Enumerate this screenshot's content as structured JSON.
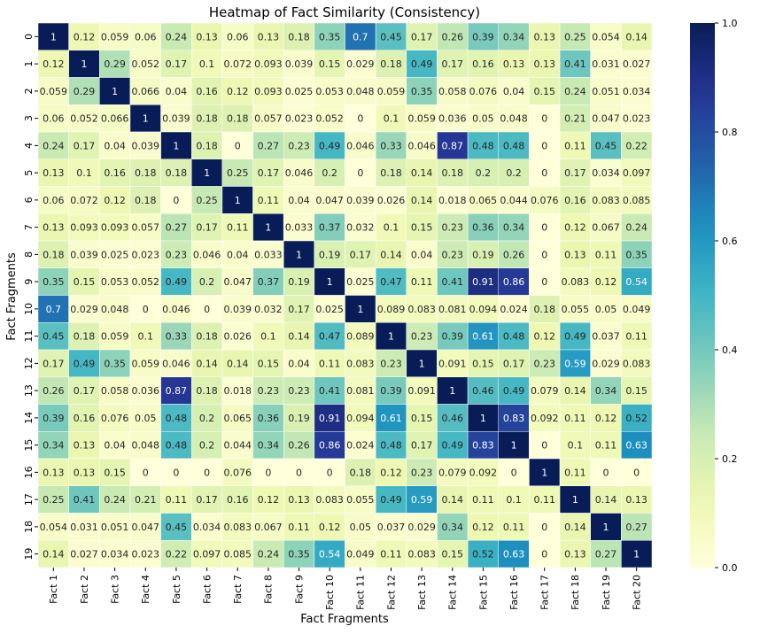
{
  "chart_data": {
    "type": "heatmap",
    "title": "Heatmap of Fact Similarity (Consistency)",
    "xlabel": "Fact Fragments",
    "ylabel": "Fact Fragments",
    "x_categories": [
      "Fact 1",
      "Fact 2",
      "Fact 3",
      "Fact 4",
      "Fact 5",
      "Fact 6",
      "Fact 7",
      "Fact 8",
      "Fact 9",
      "Fact 10",
      "Fact 11",
      "Fact 12",
      "Fact 13",
      "Fact 14",
      "Fact 15",
      "Fact 16",
      "Fact 17",
      "Fact 18",
      "Fact 19",
      "Fact 20"
    ],
    "y_categories": [
      "0",
      "1",
      "2",
      "3",
      "4",
      "5",
      "6",
      "7",
      "8",
      "9",
      "10",
      "11",
      "12",
      "13",
      "14",
      "15",
      "16",
      "17",
      "18",
      "19"
    ],
    "colormap": "YlGnBu",
    "vmin": 0,
    "vmax": 1,
    "colorbar_ticks": [
      "0.0",
      "0.2",
      "0.4",
      "0.6",
      "0.8",
      "1.0"
    ],
    "values": [
      [
        1,
        0.12,
        0.059,
        0.06,
        0.24,
        0.13,
        0.06,
        0.13,
        0.18,
        0.35,
        0.7,
        0.45,
        0.17,
        0.26,
        0.39,
        0.34,
        0.13,
        0.25,
        0.054,
        0.14
      ],
      [
        0.12,
        1,
        0.29,
        0.052,
        0.17,
        0.1,
        0.072,
        0.093,
        0.039,
        0.15,
        0.029,
        0.18,
        0.49,
        0.17,
        0.16,
        0.13,
        0.13,
        0.41,
        0.031,
        0.027
      ],
      [
        0.059,
        0.29,
        1,
        0.066,
        0.04,
        0.16,
        0.12,
        0.093,
        0.025,
        0.053,
        0.048,
        0.059,
        0.35,
        0.058,
        0.076,
        0.04,
        0.15,
        0.24,
        0.051,
        0.034
      ],
      [
        0.06,
        0.052,
        0.066,
        1,
        0.039,
        0.18,
        0.18,
        0.057,
        0.023,
        0.052,
        0,
        0.1,
        0.059,
        0.036,
        0.05,
        0.048,
        0,
        0.21,
        0.047,
        0.023
      ],
      [
        0.24,
        0.17,
        0.04,
        0.039,
        1,
        0.18,
        0,
        0.27,
        0.23,
        0.49,
        0.046,
        0.33,
        0.046,
        0.87,
        0.48,
        0.48,
        0,
        0.11,
        0.45,
        0.22
      ],
      [
        0.13,
        0.1,
        0.16,
        0.18,
        0.18,
        1,
        0.25,
        0.17,
        0.046,
        0.2,
        0,
        0.18,
        0.14,
        0.18,
        0.2,
        0.2,
        0,
        0.17,
        0.034,
        0.097
      ],
      [
        0.06,
        0.072,
        0.12,
        0.18,
        0,
        0.25,
        1,
        0.11,
        0.04,
        0.047,
        0.039,
        0.026,
        0.14,
        0.018,
        0.065,
        0.044,
        0.076,
        0.16,
        0.083,
        0.085
      ],
      [
        0.13,
        0.093,
        0.093,
        0.057,
        0.27,
        0.17,
        0.11,
        1,
        0.033,
        0.37,
        0.032,
        0.1,
        0.15,
        0.23,
        0.36,
        0.34,
        0,
        0.12,
        0.067,
        0.24
      ],
      [
        0.18,
        0.039,
        0.025,
        0.023,
        0.23,
        0.046,
        0.04,
        0.033,
        1,
        0.19,
        0.17,
        0.14,
        0.04,
        0.23,
        0.19,
        0.26,
        0,
        0.13,
        0.11,
        0.35
      ],
      [
        0.35,
        0.15,
        0.053,
        0.052,
        0.49,
        0.2,
        0.047,
        0.37,
        0.19,
        1,
        0.025,
        0.47,
        0.11,
        0.41,
        0.91,
        0.86,
        0,
        0.083,
        0.12,
        0.54
      ],
      [
        0.7,
        0.029,
        0.048,
        0,
        0.046,
        0,
        0.039,
        0.032,
        0.17,
        0.025,
        1,
        0.089,
        0.083,
        0.081,
        0.094,
        0.024,
        0.18,
        0.055,
        0.05,
        0.049
      ],
      [
        0.45,
        0.18,
        0.059,
        0.1,
        0.33,
        0.18,
        0.026,
        0.1,
        0.14,
        0.47,
        0.089,
        1,
        0.23,
        0.39,
        0.61,
        0.48,
        0.12,
        0.49,
        0.037,
        0.11
      ],
      [
        0.17,
        0.49,
        0.35,
        0.059,
        0.046,
        0.14,
        0.14,
        0.15,
        0.04,
        0.11,
        0.083,
        0.23,
        1,
        0.091,
        0.15,
        0.17,
        0.23,
        0.59,
        0.029,
        0.083
      ],
      [
        0.26,
        0.17,
        0.058,
        0.036,
        0.87,
        0.18,
        0.018,
        0.23,
        0.23,
        0.41,
        0.081,
        0.39,
        0.091,
        1,
        0.46,
        0.49,
        0.079,
        0.14,
        0.34,
        0.15
      ],
      [
        0.39,
        0.16,
        0.076,
        0.05,
        0.48,
        0.2,
        0.065,
        0.36,
        0.19,
        0.91,
        0.094,
        0.61,
        0.15,
        0.46,
        1,
        0.83,
        0.092,
        0.11,
        0.12,
        0.52
      ],
      [
        0.34,
        0.13,
        0.04,
        0.048,
        0.48,
        0.2,
        0.044,
        0.34,
        0.26,
        0.86,
        0.024,
        0.48,
        0.17,
        0.49,
        0.83,
        1,
        0,
        0.1,
        0.11,
        0.63
      ],
      [
        0.13,
        0.13,
        0.15,
        0,
        0,
        0,
        0.076,
        0,
        0,
        0,
        0.18,
        0.12,
        0.23,
        0.079,
        0.092,
        0,
        1,
        0.11,
        0,
        0
      ],
      [
        0.25,
        0.41,
        0.24,
        0.21,
        0.11,
        0.17,
        0.16,
        0.12,
        0.13,
        0.083,
        0.055,
        0.49,
        0.59,
        0.14,
        0.11,
        0.1,
        0.11,
        1,
        0.14,
        0.13
      ],
      [
        0.054,
        0.031,
        0.051,
        0.047,
        0.45,
        0.034,
        0.083,
        0.067,
        0.11,
        0.12,
        0.05,
        0.037,
        0.029,
        0.34,
        0.12,
        0.11,
        0,
        0.14,
        1,
        0.27
      ],
      [
        0.14,
        0.027,
        0.034,
        0.023,
        0.22,
        0.097,
        0.085,
        0.24,
        0.35,
        0.54,
        0.049,
        0.11,
        0.083,
        0.15,
        0.52,
        0.63,
        0,
        0.13,
        0.27,
        1
      ]
    ]
  }
}
